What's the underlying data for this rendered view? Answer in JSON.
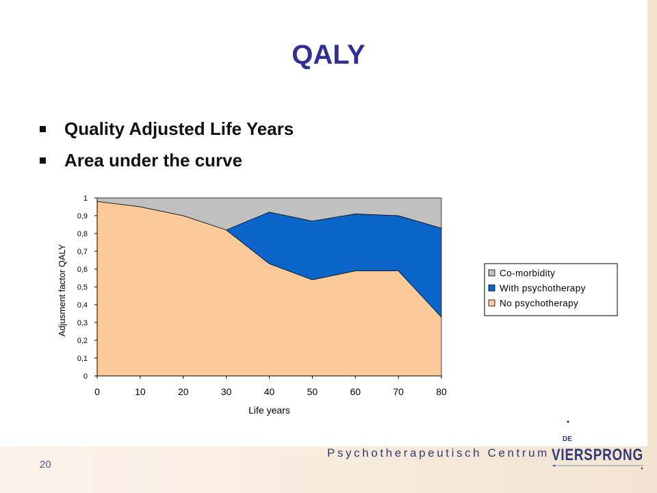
{
  "slide": {
    "title": "QALY",
    "bullets": [
      "Quality Adjusted Life Years",
      "Area under the curve"
    ],
    "page_number": "20"
  },
  "footer": {
    "organization": "Psychotherapeutisch Centrum",
    "logo_small": "DE",
    "logo_main": "VIERSPRONG"
  },
  "colors": {
    "title": "#2e3192",
    "no_psychotherapy": "#fcc998",
    "with_psychotherapy": "#0b64c8",
    "co_morbidity": "#c0c0c0"
  },
  "chart_data": {
    "type": "area",
    "stacked": true,
    "x": [
      0,
      10,
      20,
      30,
      40,
      50,
      60,
      70,
      80
    ],
    "xticks": [
      "0",
      "10",
      "20",
      "30",
      "40",
      "50",
      "60",
      "70",
      "80"
    ],
    "yticks": [
      "0",
      "0,1",
      "0,2",
      "0,3",
      "0,4",
      "0,5",
      "0,6",
      "0,7",
      "0,8",
      "0,9",
      "1"
    ],
    "xlim": [
      0,
      80
    ],
    "ylim": [
      0,
      1
    ],
    "xlabel": "Life years",
    "ylabel": "Adjusment factor QALY",
    "legend_position": "right",
    "series": [
      {
        "name": "No psychotherapy",
        "values": [
          0.98,
          0.95,
          0.9,
          0.82,
          0.63,
          0.54,
          0.59,
          0.59,
          0.33
        ]
      },
      {
        "name": "With psychotherapy",
        "values": [
          0,
          0,
          0,
          0,
          0.29,
          0.33,
          0.32,
          0.31,
          0.5
        ]
      },
      {
        "name": "Co-morbidity",
        "values": [
          0.02,
          0.05,
          0.1,
          0.18,
          0.08,
          0.13,
          0.09,
          0.1,
          0.17
        ]
      }
    ]
  }
}
